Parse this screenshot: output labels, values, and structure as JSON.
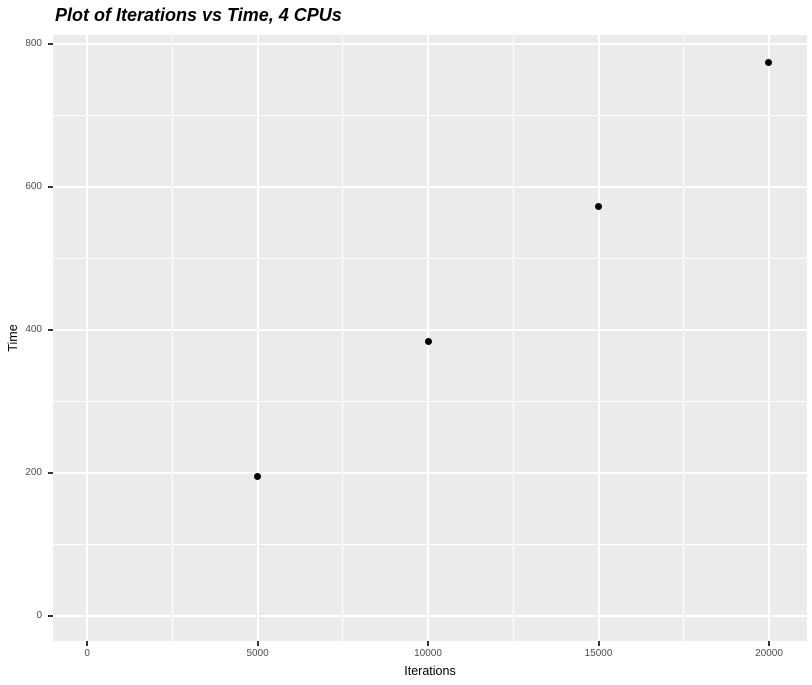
{
  "chart_data": {
    "type": "scatter",
    "title": "Plot of Iterations vs Time, 4 CPUs",
    "xlabel": "Iterations",
    "ylabel": "Time",
    "x": [
      5000,
      10000,
      15000,
      20000
    ],
    "y": [
      195,
      384,
      573,
      774
    ],
    "x_ticks": [
      0,
      5000,
      10000,
      15000,
      20000
    ],
    "x_tick_labels": [
      "0",
      "5000",
      "10000",
      "15000",
      "20000"
    ],
    "y_ticks": [
      0,
      200,
      400,
      600,
      800
    ],
    "y_tick_labels": [
      "0",
      "200",
      "400",
      "600",
      "800"
    ],
    "x_minor_gridlines": [
      2500,
      7500,
      12500,
      17500
    ],
    "y_minor_gridlines": [
      100,
      300,
      500,
      700
    ],
    "xlim": [
      -1000,
      21115
    ],
    "ylim": [
      -35,
      813
    ],
    "grid": true,
    "legend": false,
    "theme": "ggplot2-grey",
    "colors": {
      "panel_background": "#EBEBEB",
      "gridline": "#FFFFFF",
      "point": "#000000",
      "axis_text": "#4D4D4D",
      "tick_mark": "#333333",
      "title_text": "#000000"
    }
  }
}
